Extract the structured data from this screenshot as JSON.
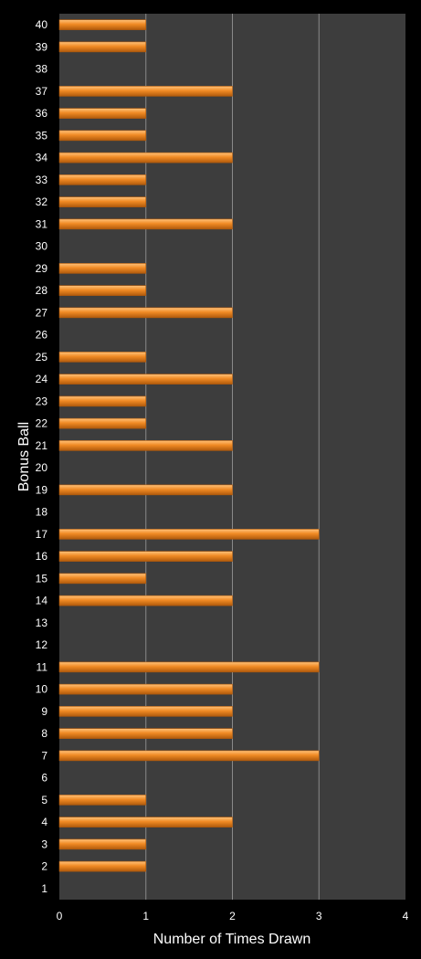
{
  "chart_data": {
    "type": "bar",
    "orientation": "horizontal",
    "xlabel": "Number of Times Drawn",
    "ylabel": "Bonus Ball",
    "xlim": [
      0,
      4
    ],
    "x_ticks": [
      0,
      1,
      2,
      3,
      4
    ],
    "grid": "vertical",
    "categories": [
      "1",
      "2",
      "3",
      "4",
      "5",
      "6",
      "7",
      "8",
      "9",
      "10",
      "11",
      "12",
      "13",
      "14",
      "15",
      "16",
      "17",
      "18",
      "19",
      "20",
      "21",
      "22",
      "23",
      "24",
      "25",
      "26",
      "27",
      "28",
      "29",
      "30",
      "31",
      "32",
      "33",
      "34",
      "35",
      "36",
      "37",
      "38",
      "39",
      "40"
    ],
    "values": [
      0,
      1,
      1,
      2,
      1,
      0,
      3,
      2,
      2,
      2,
      3,
      0,
      0,
      2,
      1,
      2,
      3,
      0,
      2,
      0,
      2,
      1,
      1,
      2,
      1,
      0,
      2,
      1,
      1,
      0,
      2,
      1,
      1,
      2,
      1,
      1,
      2,
      0,
      1,
      1
    ],
    "colors": {
      "background": "#000000",
      "plot_area": "#3d3d3d",
      "gridline": "#8a8a8a",
      "bar": "#f08a24",
      "bar_highlight": "#ffc27a",
      "bar_shadow": "#b05a0c",
      "text": "#ffffff"
    }
  }
}
